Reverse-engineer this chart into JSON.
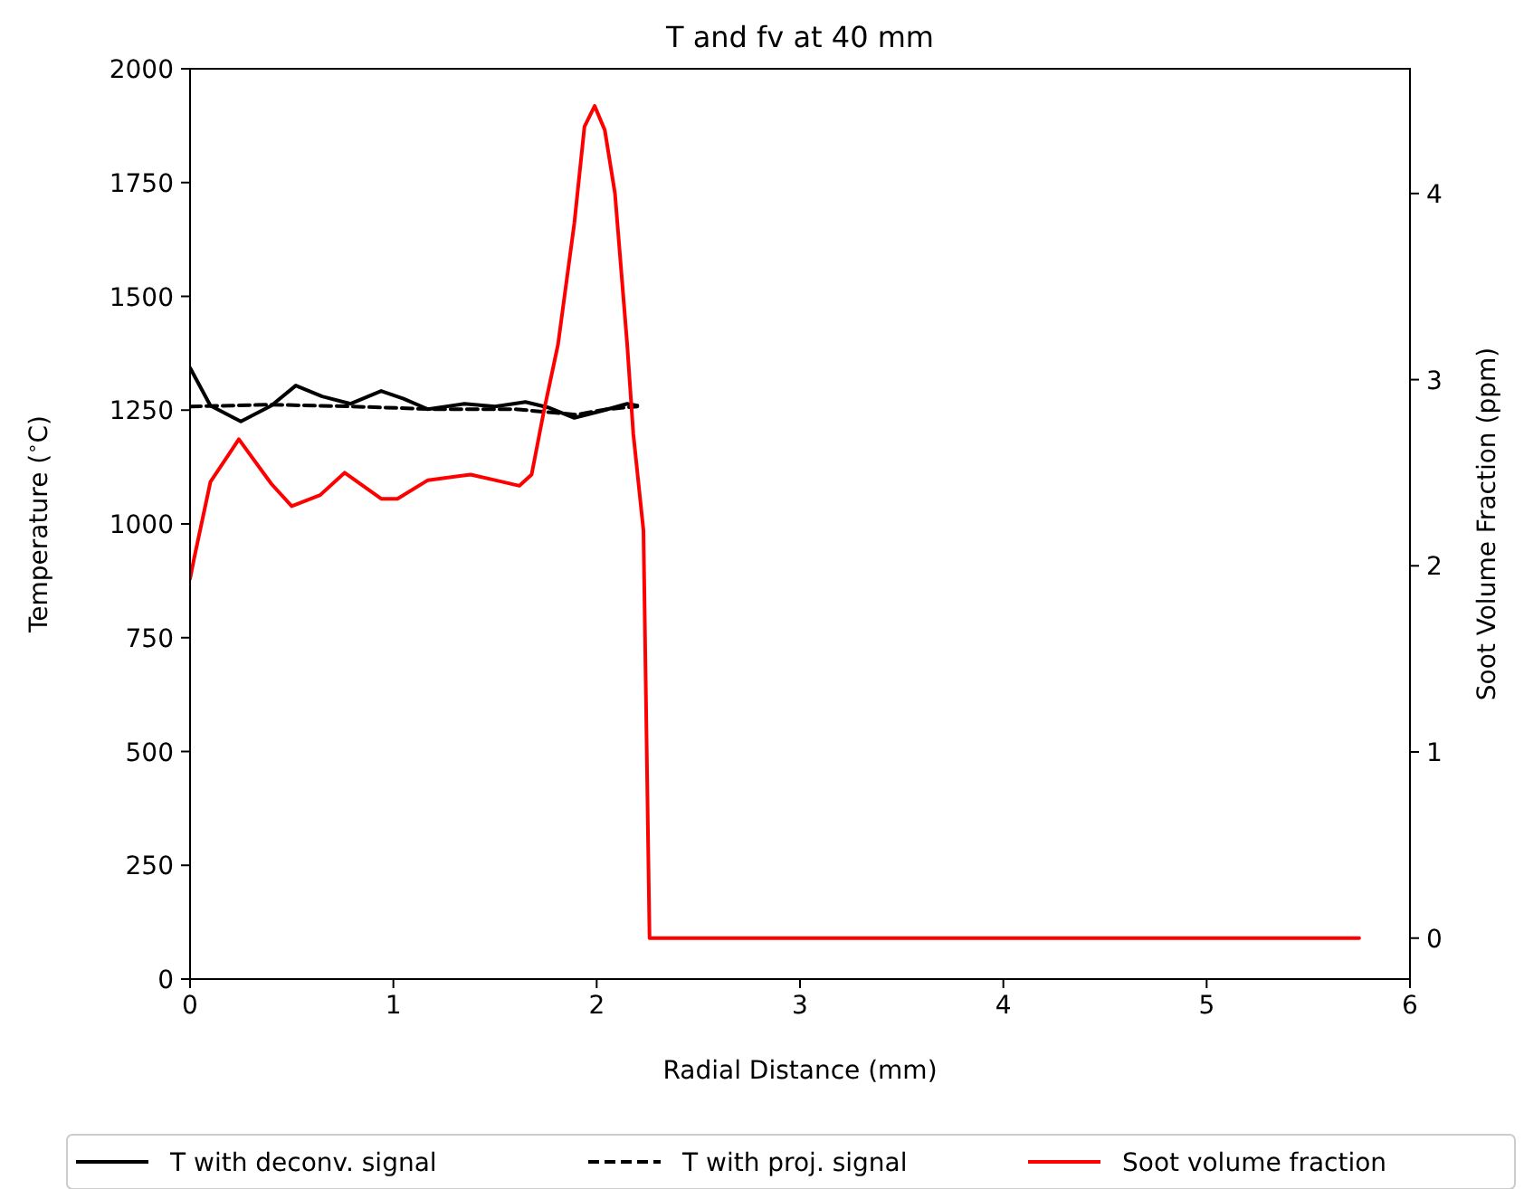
{
  "chart_data": {
    "type": "line",
    "title": "T and fv at 40 mm",
    "xlabel": "Radial Distance (mm)",
    "ylabel": "Temperature ($^{∘}$C)",
    "y2label": "Soot Volume Fraction (ppm)",
    "xlim": [
      0,
      6
    ],
    "xticks": [
      0,
      1,
      2,
      3,
      4,
      5,
      6
    ],
    "ylim": [
      0,
      2000
    ],
    "yticks": [
      0,
      250,
      500,
      750,
      1000,
      1250,
      1500,
      1750,
      2000
    ],
    "y2lim": [
      -0.22,
      4.67
    ],
    "y2ticks": [
      0,
      1,
      2,
      3,
      4
    ],
    "grid": false,
    "legend": "bottom",
    "marker": "none",
    "series": [
      {
        "name": "T with deconv. signal",
        "color": "#000000",
        "line_style": "solid",
        "x": [
          0,
          0.1,
          0.25,
          0.4,
          0.52,
          0.65,
          0.79,
          0.94,
          1.05,
          1.17,
          1.35,
          1.5,
          1.65,
          1.76,
          1.89,
          2.03,
          2.15,
          2.2
        ],
        "values": [
          1343,
          1260,
          1225,
          1260,
          1304,
          1280,
          1264,
          1292,
          1275,
          1252,
          1264,
          1258,
          1268,
          1256,
          1233,
          1249,
          1264,
          1260
        ]
      },
      {
        "name": "T with proj. signal",
        "color": "#000000",
        "line_style": "dashed",
        "x": [
          0,
          0.4,
          0.8,
          1.2,
          1.6,
          1.9,
          2.05,
          2.2
        ],
        "values": [
          1258,
          1262,
          1258,
          1252,
          1252,
          1240,
          1252,
          1258
        ]
      },
      {
        "name": "Soot volume fraction",
        "color": "#ff0000",
        "line_style": "solid",
        "axis": "y2",
        "x": [
          0,
          0.02,
          0.1,
          0.24,
          0.4,
          0.5,
          0.64,
          0.76,
          0.94,
          1.02,
          1.17,
          1.38,
          1.5,
          1.62,
          1.68,
          1.74,
          1.81,
          1.89,
          1.94,
          1.99,
          2.04,
          2.09,
          2.15,
          2.18,
          2.23,
          2.26,
          5.75
        ],
        "values": [
          1.93,
          2.04,
          2.45,
          2.68,
          2.44,
          2.32,
          2.38,
          2.5,
          2.36,
          2.36,
          2.46,
          2.49,
          2.46,
          2.43,
          2.49,
          2.83,
          3.19,
          3.84,
          4.36,
          4.47,
          4.34,
          4.0,
          3.19,
          2.71,
          2.19,
          0.0,
          0.0
        ]
      }
    ]
  }
}
